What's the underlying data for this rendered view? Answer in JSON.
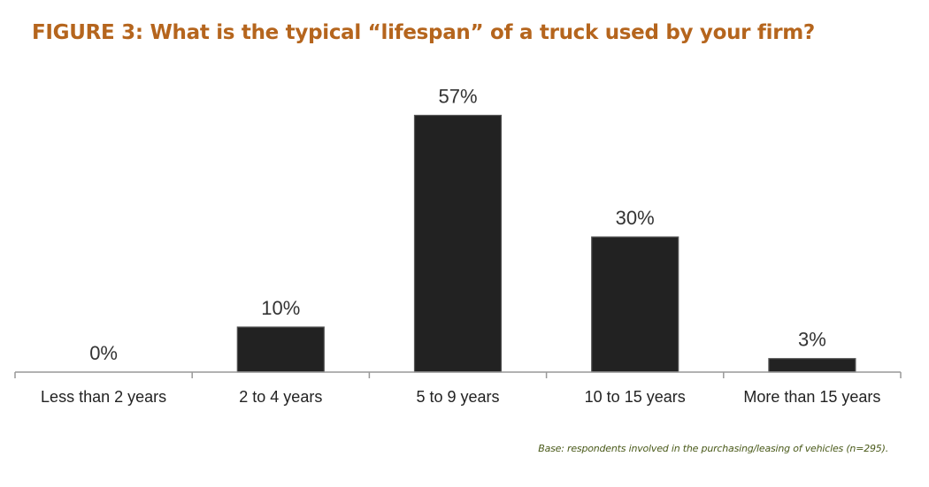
{
  "title": "FIGURE 3: What is the typical “lifespan” of a truck used by your firm?",
  "footnote": "Base: respondents involved in the purchasing/leasing of vehicles (n=295).",
  "colors": {
    "title": "#b5651d",
    "footnote": "#4a5a1a",
    "bar": "#222222",
    "bar_edge": "#555555",
    "axis": "#999999",
    "text": "#222222",
    "label": "#333333"
  },
  "chart_data": {
    "type": "bar",
    "title": "FIGURE 3: What is the typical “lifespan” of a truck used by your firm?",
    "categories": [
      "Less than 2 years",
      "2 to 4 years",
      "5 to 9 years",
      "10 to 15 years",
      "More than 15 years"
    ],
    "values": [
      0,
      10,
      57,
      30,
      3
    ],
    "value_labels": [
      "0%",
      "10%",
      "57%",
      "30%",
      "3%"
    ],
    "unit": "%",
    "ylim": [
      0,
      62
    ],
    "grid": false,
    "legend": "none"
  }
}
